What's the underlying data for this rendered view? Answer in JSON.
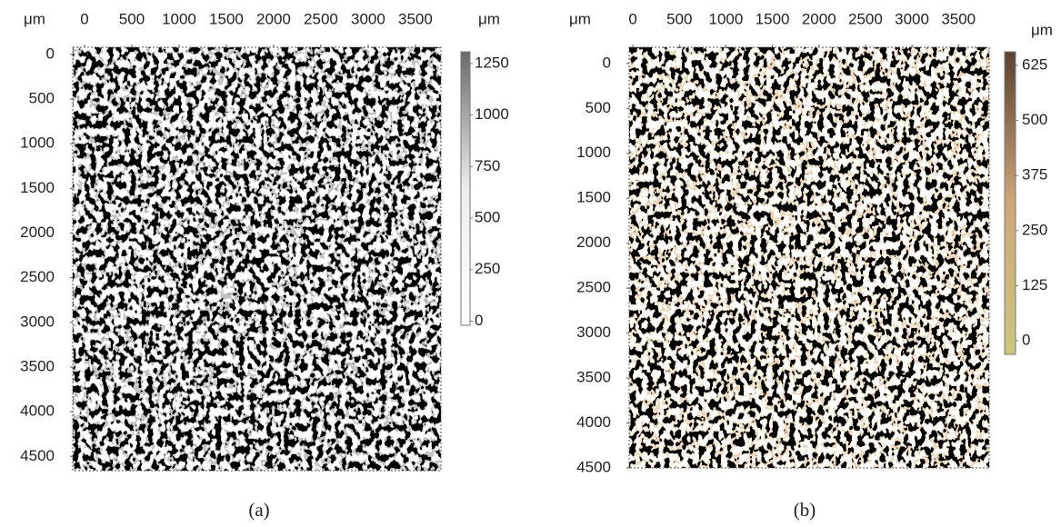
{
  "chart_data": [
    {
      "type": "surface-map",
      "axis_unit": "μm",
      "colorbar_unit": "μm",
      "caption": "(a)",
      "xlim": [
        -125,
        3770
      ],
      "xticks": [
        0,
        500,
        1000,
        1500,
        2000,
        2500,
        3000,
        3500
      ],
      "ylim": [
        -80,
        4660
      ],
      "y_inverted": true,
      "yticks": [
        0,
        500,
        1000,
        1500,
        2000,
        2500,
        3000,
        3500,
        4000,
        4500
      ],
      "clim": [
        -20,
        1307
      ],
      "cticks": [
        0,
        250,
        500,
        750,
        1000,
        1250
      ],
      "colorbar_colors": [
        "#ffffff",
        "#ededed",
        "#6a6a6a"
      ],
      "texture_colors": [
        "#000000",
        "#8c8c8c",
        "#ffffff"
      ]
    },
    {
      "type": "surface-map",
      "axis_unit": "μm",
      "colorbar_unit": "μm",
      "caption": "(b)",
      "xlim": [
        -40,
        3830
      ],
      "xticks": [
        0,
        500,
        1000,
        1500,
        2000,
        2500,
        3000,
        3500
      ],
      "ylim": [
        -180,
        4500
      ],
      "y_inverted": true,
      "yticks": [
        0,
        500,
        1000,
        1500,
        2000,
        2500,
        3000,
        3500,
        4000,
        4500
      ],
      "clim": [
        -31,
        656
      ],
      "cticks": [
        0,
        125,
        250,
        375,
        500,
        625
      ],
      "colorbar_colors": [
        "#c9c77a",
        "#d2a677",
        "#5a4230"
      ],
      "texture_colors": [
        "#000000",
        "#d6ad7c",
        "#ffffff"
      ]
    }
  ]
}
